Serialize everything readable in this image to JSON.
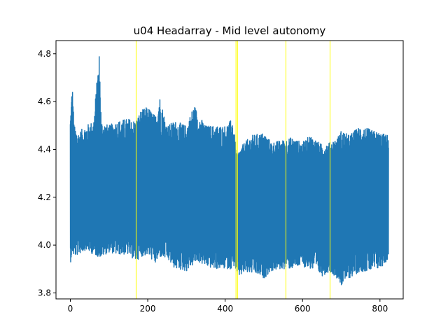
{
  "chart_data": {
    "type": "line",
    "title": "u04 Headarray - Mid level autonomy",
    "xlabel": "",
    "ylabel": "",
    "xlim": [
      -37,
      860
    ],
    "ylim": [
      3.775,
      4.855
    ],
    "grid": false,
    "xticks": [
      0,
      200,
      400,
      600,
      800
    ],
    "xtick_labels": [
      "0",
      "200",
      "400",
      "600",
      "800"
    ],
    "yticks": [
      3.8,
      4.0,
      4.2,
      4.4,
      4.6,
      4.8
    ],
    "ytick_labels": [
      "3.8",
      "4.0",
      "4.2",
      "4.4",
      "4.6",
      "4.8"
    ],
    "series": [
      {
        "color": "#1f77b4",
        "x_start": 0,
        "x_end": 822,
        "envelope_x": [
          0,
          5,
          10,
          20,
          40,
          60,
          75,
          80,
          100,
          120,
          150,
          170,
          180,
          200,
          220,
          230,
          250,
          270,
          300,
          320,
          330,
          350,
          370,
          400,
          420,
          425,
          430,
          450,
          470,
          500,
          520,
          550,
          570,
          600,
          620,
          650,
          670,
          690,
          700,
          720,
          750,
          780,
          800,
          822
        ],
        "envelope_high": [
          4.54,
          4.68,
          4.5,
          4.47,
          4.5,
          4.52,
          4.81,
          4.52,
          4.5,
          4.52,
          4.53,
          4.52,
          4.56,
          4.58,
          4.54,
          4.63,
          4.5,
          4.52,
          4.5,
          4.59,
          4.55,
          4.5,
          4.5,
          4.5,
          4.53,
          4.45,
          4.38,
          4.43,
          4.46,
          4.47,
          4.43,
          4.44,
          4.45,
          4.43,
          4.46,
          4.42,
          4.43,
          4.45,
          4.48,
          4.46,
          4.5,
          4.48,
          4.47,
          4.46
        ],
        "envelope_low": [
          3.92,
          3.97,
          3.95,
          3.96,
          3.98,
          3.96,
          3.95,
          3.95,
          3.97,
          3.96,
          3.96,
          3.93,
          3.95,
          3.96,
          3.92,
          3.95,
          3.94,
          3.9,
          3.89,
          3.92,
          3.93,
          3.91,
          3.9,
          3.9,
          3.9,
          3.92,
          3.86,
          3.88,
          3.88,
          3.86,
          3.89,
          3.9,
          3.9,
          3.91,
          3.9,
          3.87,
          3.89,
          3.86,
          3.83,
          3.86,
          3.89,
          3.89,
          3.9,
          3.94
        ],
        "center": 4.2
      }
    ],
    "vlines": [
      {
        "x": 170,
        "color": "#ffff00"
      },
      {
        "x": 428,
        "color": "#ffff00"
      },
      {
        "x": 432,
        "color": "#ffff00"
      },
      {
        "x": 557,
        "color": "#ffff00"
      },
      {
        "x": 671,
        "color": "#ffff00"
      }
    ]
  }
}
